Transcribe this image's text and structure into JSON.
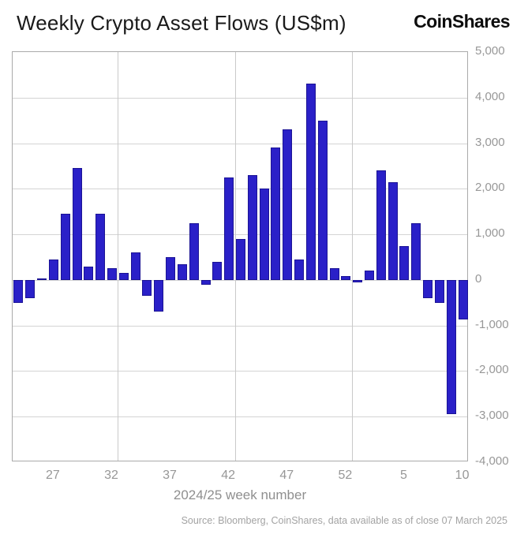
{
  "header": {
    "title": "Weekly Crypto Asset Flows (US$m)",
    "brand": "CoinShares"
  },
  "chart_data": {
    "type": "bar",
    "title": "Weekly Crypto Asset Flows (US$m)",
    "xlabel": "2024/25 week number",
    "ylabel": "",
    "ylim": [
      -4000,
      5000
    ],
    "ytick_step": 1000,
    "ytick_labels": [
      "5,000",
      "4,000",
      "3,000",
      "2,000",
      "1,000",
      "0",
      "-1,000",
      "-2,000",
      "-3,000",
      "-4,000"
    ],
    "categories": [
      "24",
      "25",
      "26",
      "27",
      "28",
      "29",
      "30",
      "31",
      "32",
      "33",
      "34",
      "35",
      "36",
      "37",
      "38",
      "39",
      "40",
      "41",
      "42",
      "43",
      "44",
      "45",
      "46",
      "47",
      "48",
      "49",
      "50",
      "51",
      "52",
      "1",
      "2",
      "3",
      "4",
      "5",
      "6",
      "7",
      "8",
      "9",
      "10"
    ],
    "values": [
      -500,
      -400,
      30,
      450,
      1450,
      2450,
      300,
      1450,
      250,
      150,
      600,
      -350,
      -700,
      500,
      350,
      1250,
      -100,
      400,
      2250,
      900,
      2300,
      2000,
      2900,
      3300,
      450,
      4300,
      3500,
      250,
      80,
      -50,
      200,
      2400,
      2150,
      750,
      1250,
      -400,
      -500,
      -2950,
      -875
    ],
    "xticks": [
      {
        "index": 3,
        "label": "27"
      },
      {
        "index": 8,
        "label": "32"
      },
      {
        "index": 13,
        "label": "37"
      },
      {
        "index": 18,
        "label": "42"
      },
      {
        "index": 23,
        "label": "47"
      },
      {
        "index": 28,
        "label": "52"
      },
      {
        "index": 33,
        "label": "5"
      },
      {
        "index": 38,
        "label": "10"
      }
    ],
    "vline_boundaries": [
      9,
      19,
      29
    ],
    "grid": "on",
    "legend_position": "none",
    "bar_color": "#2a20c8",
    "bar_border_color": "#1b1395",
    "grid_color": "#d4d4d4",
    "axis_border_color": "#aaaaaa",
    "tick_text_color": "#979797"
  },
  "footer": {
    "source": "Source: Bloomberg, CoinShares, data available as of close 07 March 2025"
  }
}
